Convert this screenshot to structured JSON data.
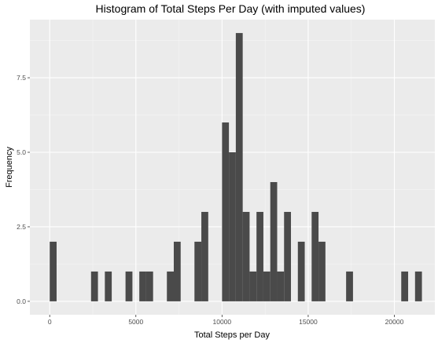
{
  "chart_data": {
    "type": "bar",
    "title": "Histogram of Total Steps Per Day (with imputed values)",
    "xlabel": "Total Steps per Day",
    "ylabel": "Frequency",
    "binwidth": 400,
    "xlim": [
      -1150,
      22350
    ],
    "ylim": [
      -0.45,
      9.45
    ],
    "x_ticks": [
      0,
      5000,
      10000,
      15000,
      20000
    ],
    "x_minor_ticks": [
      2500,
      7500,
      12500,
      17500
    ],
    "y_ticks": [
      0,
      2.5,
      5,
      7.5
    ],
    "y_minor_ticks": [
      1.25,
      3.75,
      6.25,
      8.75
    ],
    "x_tick_labels": [
      "0",
      "5000",
      "10000",
      "15000",
      "20000"
    ],
    "y_tick_labels": [
      "0.0",
      "2.5",
      "5.0",
      "7.5"
    ],
    "grid": true,
    "bars_start": [
      0,
      2400,
      3200,
      4400,
      5200,
      5600,
      6800,
      7200,
      8400,
      8800,
      10000,
      10400,
      10800,
      11200,
      11600,
      12000,
      12400,
      12800,
      13200,
      13600,
      14400,
      15200,
      15600,
      17200,
      20400,
      21200
    ],
    "values": [
      2,
      1,
      1,
      1,
      1,
      1,
      1,
      2,
      2,
      3,
      6,
      5,
      9,
      3,
      1,
      3,
      1,
      4,
      1,
      3,
      2,
      3,
      2,
      1,
      1,
      1
    ],
    "colors": {
      "panel": "#ebebeb",
      "grid_major": "#ffffff",
      "grid_minor": "#f5f5f5",
      "bar": "#4a4a4a",
      "tick_text": "#4d4d4d",
      "tick_mark": "#333333"
    }
  }
}
